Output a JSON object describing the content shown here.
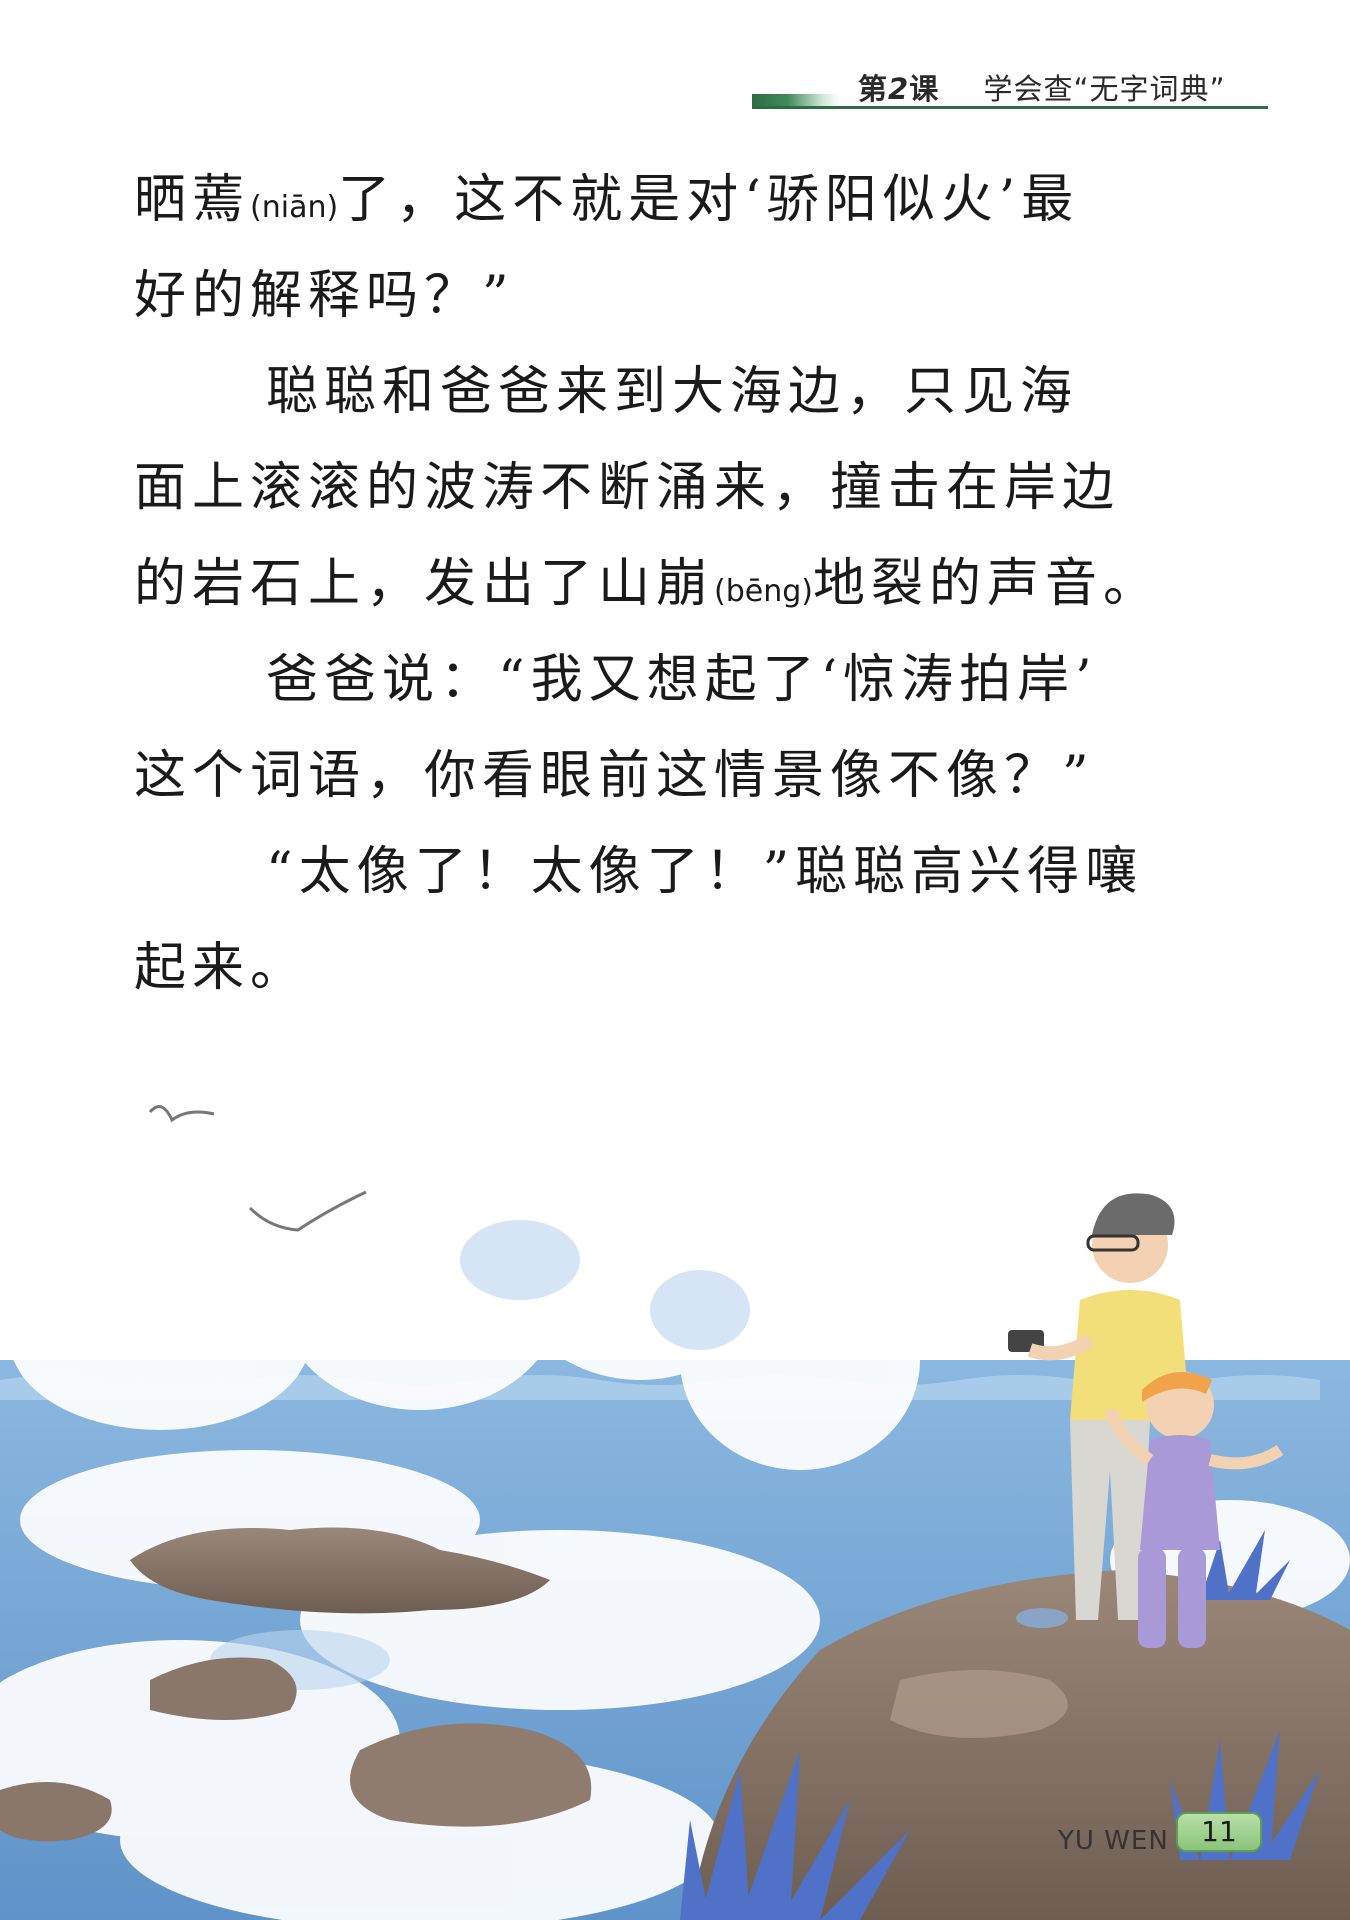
{
  "header": {
    "lesson_prefix": "第",
    "lesson_number": "2",
    "lesson_suffix": "课",
    "title": "学会查“无字词典”"
  },
  "paragraphs": [
    {
      "text_a": "晒蔫",
      "pinyin": "(niān)",
      "text_b": "了，这不就是对‘骄阳似火’最"
    },
    {
      "text": "好的解释吗？”"
    },
    {
      "text": "聪聪和爸爸来到大海边，只见海"
    },
    {
      "text": "面上滚滚的波涛不断涌来，撞击在岸边"
    },
    {
      "text_a": "的岩石上，发出了山崩",
      "pinyin": "(bēng)",
      "text_b": "地裂的声音。"
    },
    {
      "text": "爸爸说：“我又想起了‘惊涛拍岸’"
    },
    {
      "text": "这个词语，你看眼前这情景像不像？”"
    },
    {
      "text": "“太像了！太像了！”聪聪高兴得嚷"
    },
    {
      "text": "起来。"
    }
  ],
  "footer": {
    "label": "YU WEN",
    "page_number": "11"
  },
  "colors": {
    "header_green": "#2f6d45",
    "sea_blue": "#6fa3d6",
    "badge_green": "#9fd08c"
  }
}
